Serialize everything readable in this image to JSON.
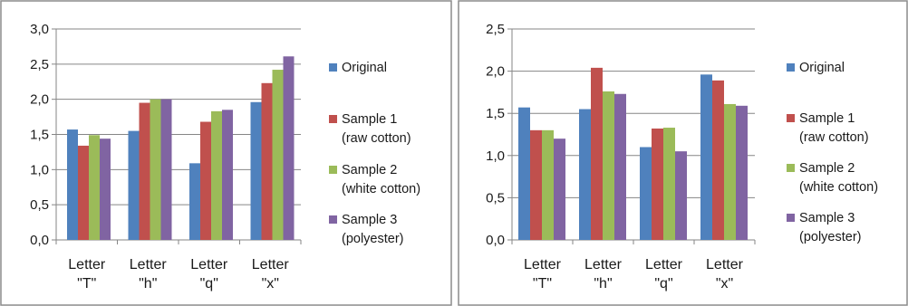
{
  "chart_data": [
    {
      "type": "bar",
      "categories": [
        [
          "Letter",
          "\"T\""
        ],
        [
          "Letter",
          "\"h\""
        ],
        [
          "Letter",
          "\"q\""
        ],
        [
          "Letter",
          "\"x\""
        ]
      ],
      "series": [
        {
          "name": "Original",
          "values": [
            1.57,
            1.55,
            1.09,
            1.96
          ],
          "color": "#4f81bd"
        },
        {
          "name": "Sample 1 (raw cotton)",
          "values": [
            1.34,
            1.95,
            1.68,
            2.23
          ],
          "color": "#c0504d"
        },
        {
          "name": "Sample 2 (white cotton)",
          "values": [
            1.49,
            2.0,
            1.83,
            2.42
          ],
          "color": "#9bbb59"
        },
        {
          "name": "Sample 3 (polyester)",
          "values": [
            1.44,
            2.0,
            1.85,
            2.61
          ],
          "color": "#8064a2"
        }
      ],
      "legend": [
        {
          "line1": "Original",
          "line2": ""
        },
        {
          "line1": "Sample 1",
          "line2": "(raw cotton)"
        },
        {
          "line1": "Sample 2",
          "line2": "(white cotton)"
        },
        {
          "line1": "Sample 3",
          "line2": "(polyester)"
        }
      ],
      "ylim": [
        0,
        3.0
      ],
      "yticks": [
        0,
        0.5,
        1.0,
        1.5,
        2.0,
        2.5,
        3.0
      ],
      "ytick_labels": [
        "0,0",
        "0,5",
        "1,0",
        "1,5",
        "2,0",
        "2,5",
        "3,0"
      ],
      "grid": true,
      "legend_position": "right",
      "title": "",
      "xlabel": "",
      "ylabel": ""
    },
    {
      "type": "bar",
      "categories": [
        [
          "Letter",
          "\"T\""
        ],
        [
          "Letter",
          "\"h\""
        ],
        [
          "Letter",
          "\"q\""
        ],
        [
          "Letter",
          "\"x\""
        ]
      ],
      "series": [
        {
          "name": "Original",
          "values": [
            1.57,
            1.55,
            1.1,
            1.96
          ],
          "color": "#4f81bd"
        },
        {
          "name": "Sample 1 (raw cotton)",
          "values": [
            1.3,
            2.04,
            1.32,
            1.89
          ],
          "color": "#c0504d"
        },
        {
          "name": "Sample 2 (white cotton)",
          "values": [
            1.3,
            1.76,
            1.33,
            1.61
          ],
          "color": "#9bbb59"
        },
        {
          "name": "Sample 3 (polyester)",
          "values": [
            1.2,
            1.73,
            1.05,
            1.59
          ],
          "color": "#8064a2"
        }
      ],
      "legend": [
        {
          "line1": "Original",
          "line2": ""
        },
        {
          "line1": "Sample 1",
          "line2": "(raw cotton)"
        },
        {
          "line1": "Sample 2",
          "line2": "(white cotton)"
        },
        {
          "line1": "Sample 3",
          "line2": "(polyester)"
        }
      ],
      "ylim": [
        0,
        2.5
      ],
      "yticks": [
        0,
        0.5,
        1.0,
        1.5,
        2.0,
        2.5
      ],
      "ytick_labels": [
        "0,0",
        "0,5",
        "1,0",
        "1,5",
        "2,0",
        "2,5"
      ],
      "grid": true,
      "legend_position": "right",
      "title": "",
      "xlabel": "",
      "ylabel": ""
    }
  ]
}
